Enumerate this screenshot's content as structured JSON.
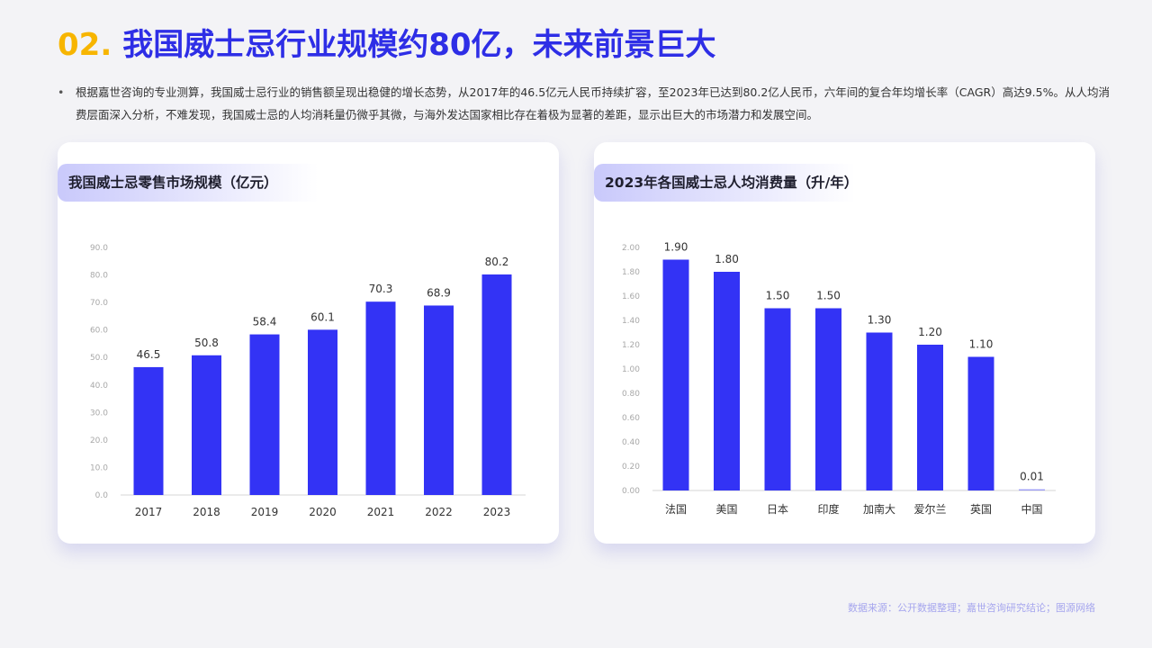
{
  "header": {
    "number": "02.",
    "title": "我国威士忌行业规模约80亿，未来前景巨大"
  },
  "description": {
    "bullet": "•",
    "text": "根据嘉世咨询的专业测算，我国威士忌行业的销售额呈现出稳健的增长态势，从2017年的46.5亿元人民币持续扩容，至2023年已达到80.2亿人民币，六年间的复合年均增长率（CAGR）高达9.5%。从人均消费层面深入分析，不难发现，我国威士忌的人均消耗量仍微乎其微，与海外发达国家相比存在着极为显著的差距，显示出巨大的市场潜力和发展空间。"
  },
  "source": "数据来源：公开数据整理；嘉世咨询研究结论；图源网络",
  "colors": {
    "accent": "#2e2ee6",
    "number": "#f7b500",
    "bar": "#3333f5",
    "bar_small": "#9a9af5"
  },
  "chart_data": [
    {
      "type": "bar",
      "title": "我国威士忌零售市场规模（亿元）",
      "categories": [
        "2017",
        "2018",
        "2019",
        "2020",
        "2021",
        "2022",
        "2023"
      ],
      "values": [
        46.5,
        50.8,
        58.4,
        60.1,
        70.3,
        68.9,
        80.2
      ],
      "value_labels": [
        "46.5",
        "50.8",
        "58.4",
        "60.1",
        "70.3",
        "68.9",
        "80.2"
      ],
      "ylim": [
        0,
        90
      ],
      "yticks": [
        "0.0",
        "10.0",
        "20.0",
        "30.0",
        "40.0",
        "50.0",
        "60.0",
        "70.0",
        "80.0",
        "90.0"
      ],
      "grid": false
    },
    {
      "type": "bar",
      "title": "2023年各国威士忌人均消费量（升/年）",
      "categories": [
        "法国",
        "美国",
        "日本",
        "印度",
        "加南大",
        "爱尔兰",
        "英国",
        "中国"
      ],
      "values": [
        1.9,
        1.8,
        1.5,
        1.5,
        1.3,
        1.2,
        1.1,
        0.01
      ],
      "value_labels": [
        "1.90",
        "1.80",
        "1.50",
        "1.50",
        "1.30",
        "1.20",
        "1.10",
        "0.01"
      ],
      "ylim": [
        0,
        2.0
      ],
      "yticks": [
        "0.00",
        "0.20",
        "0.40",
        "0.60",
        "0.80",
        "1.00",
        "1.20",
        "1.40",
        "1.60",
        "1.80",
        "2.00"
      ],
      "grid": false
    }
  ]
}
